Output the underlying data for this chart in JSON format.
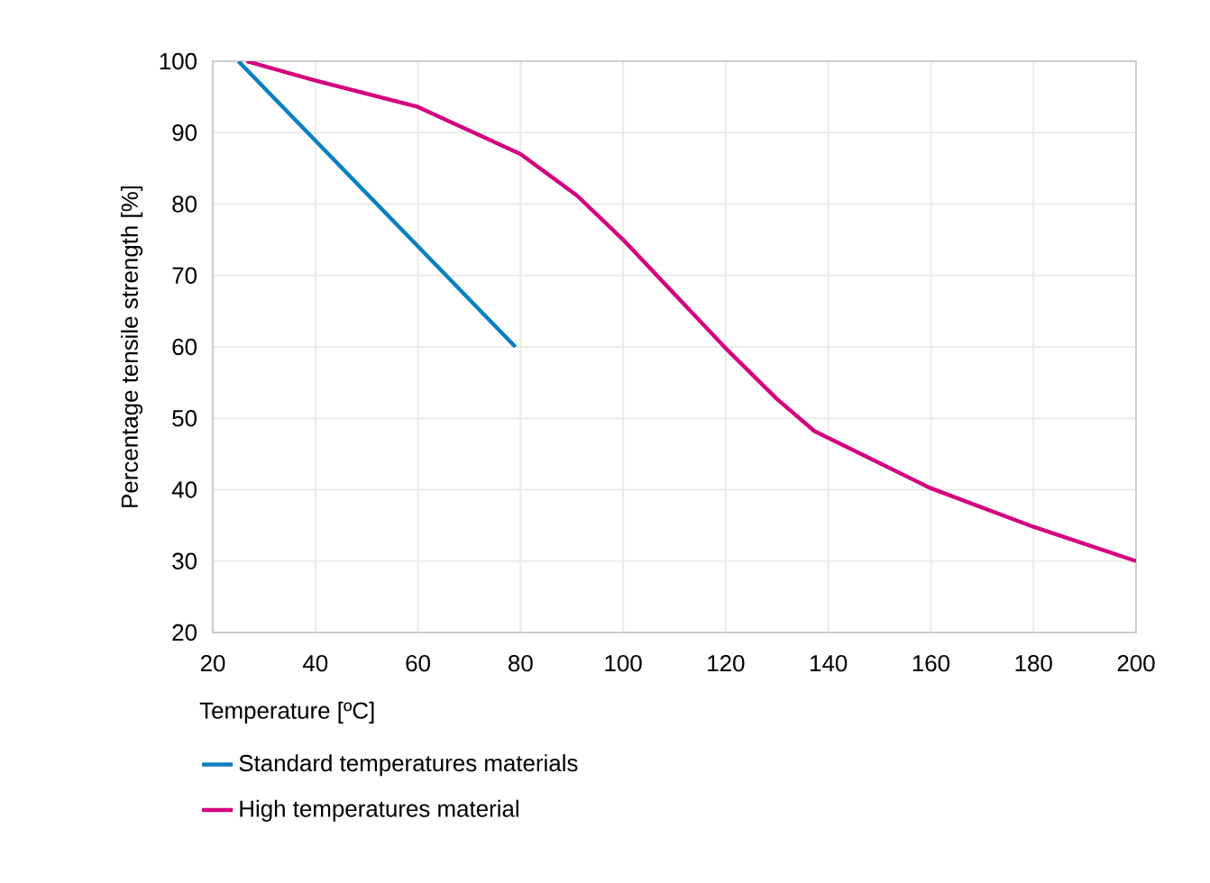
{
  "chart_data": {
    "type": "line",
    "xlabel": "Temperature [ºC]",
    "ylabel": "Percentage tensile strength [%]",
    "xlim": [
      20,
      200
    ],
    "ylim": [
      20,
      100
    ],
    "xticks": [
      20,
      40,
      60,
      80,
      100,
      120,
      140,
      160,
      180,
      200
    ],
    "yticks": [
      20,
      30,
      40,
      50,
      60,
      70,
      80,
      90,
      100
    ],
    "grid": true,
    "legend": "bottom",
    "marker": "none",
    "line_style": "solid",
    "series": [
      {
        "name": "Standard temperatures materials",
        "color": "#0a7fc2",
        "x": [
          25,
          79
        ],
        "values": [
          100,
          60
        ]
      },
      {
        "name": "High temperatures material",
        "color": "#d4007f",
        "x": [
          26.6,
          40,
          60,
          80,
          91,
          100,
          120,
          130,
          137.3,
          160,
          180,
          200
        ],
        "values": [
          100,
          97.3,
          93.6,
          87,
          81.2,
          75,
          59.8,
          52.7,
          48.2,
          40.2,
          34.8,
          30
        ]
      }
    ]
  }
}
